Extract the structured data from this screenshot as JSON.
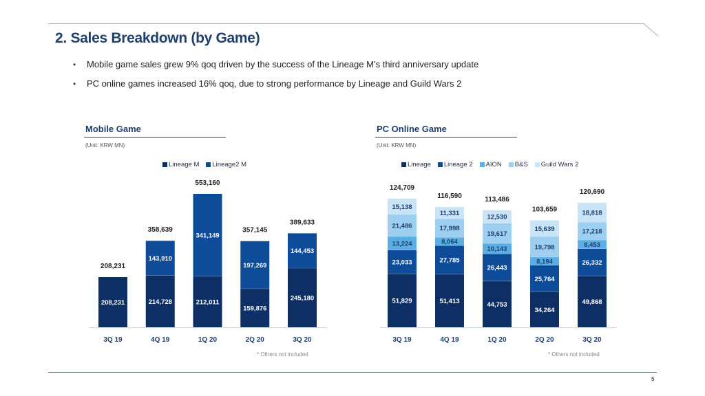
{
  "slide": {
    "title": "2. Sales Breakdown (by Game)",
    "bullets": [
      "Mobile game sales grew 9% qoq driven by the success of the Lineage M’s third anniversary update",
      "PC online games increased 16% qoq, due to strong performance by Lineage and Guild Wars 2"
    ],
    "page_number": "5"
  },
  "chart_data": [
    {
      "type": "bar",
      "stacked": true,
      "title": "Mobile Game",
      "unit": "(Unit: KRW MN)",
      "note": "* Others not included",
      "categories": [
        "3Q 19",
        "4Q 19",
        "1Q 20",
        "2Q 20",
        "3Q 20"
      ],
      "series": [
        {
          "name": "Lineage M",
          "color": "#0d2f66",
          "values": [
            208231,
            214728,
            212011,
            159876,
            245180
          ]
        },
        {
          "name": "Lineage2 M",
          "color": "#0e4c9a",
          "values": [
            null,
            143910,
            341149,
            197269,
            144453
          ]
        }
      ],
      "totals": [
        208231,
        358639,
        553160,
        357145,
        389633
      ],
      "labels": {
        "totals": [
          "208,231",
          "358,639",
          "553,160",
          "357,145",
          "389,633"
        ],
        "series": [
          [
            "208,231",
            "214,728",
            "212,011",
            "159,876",
            "245,180"
          ],
          [
            "",
            "143,910",
            "341,149",
            "197,269",
            "144,453"
          ]
        ]
      },
      "legend_position": "top-center",
      "ylim": [
        0,
        553160
      ],
      "xlabel": "",
      "ylabel": ""
    },
    {
      "type": "bar",
      "stacked": true,
      "title": "PC Online Game",
      "unit": "(Unit: KRW MN)",
      "note": "* Others not included",
      "categories": [
        "3Q 19",
        "4Q 19",
        "1Q 20",
        "2Q 20",
        "3Q 20"
      ],
      "series": [
        {
          "name": "Lineage",
          "color": "#0d2f66",
          "values": [
            51829,
            51413,
            44753,
            34264,
            49868
          ]
        },
        {
          "name": "Lineage 2",
          "color": "#0e4c9a",
          "values": [
            23033,
            27785,
            26443,
            25764,
            26332
          ]
        },
        {
          "name": "AION",
          "color": "#5aaee3",
          "values": [
            13224,
            8064,
            10143,
            8194,
            8453
          ]
        },
        {
          "name": "B&S",
          "color": "#9ccff0",
          "values": [
            21486,
            17998,
            19617,
            19798,
            17218
          ]
        },
        {
          "name": "Guild Wars 2",
          "color": "#c9e4f6",
          "values": [
            15138,
            11331,
            12530,
            15639,
            18818
          ]
        }
      ],
      "totals": [
        124709,
        116590,
        113486,
        103659,
        120690
      ],
      "labels": {
        "totals": [
          "124,709",
          "116,590",
          "113,486",
          "103,659",
          "120,690"
        ],
        "series": [
          [
            "51,829",
            "51,413",
            "44,753",
            "34,264",
            "49,868"
          ],
          [
            "23,033",
            "27,785",
            "26,443",
            "25,764",
            "26,332"
          ],
          [
            "13,224",
            "8,064",
            "10,143",
            "8,194",
            "8,453"
          ],
          [
            "21,486",
            "17,998",
            "19,617",
            "19,798",
            "17,218"
          ],
          [
            "15,138",
            "11,331",
            "12,530",
            "15,639",
            "18,818"
          ]
        ]
      },
      "legend_position": "top-center",
      "ylim": [
        0,
        124709
      ],
      "xlabel": "",
      "ylabel": ""
    }
  ]
}
